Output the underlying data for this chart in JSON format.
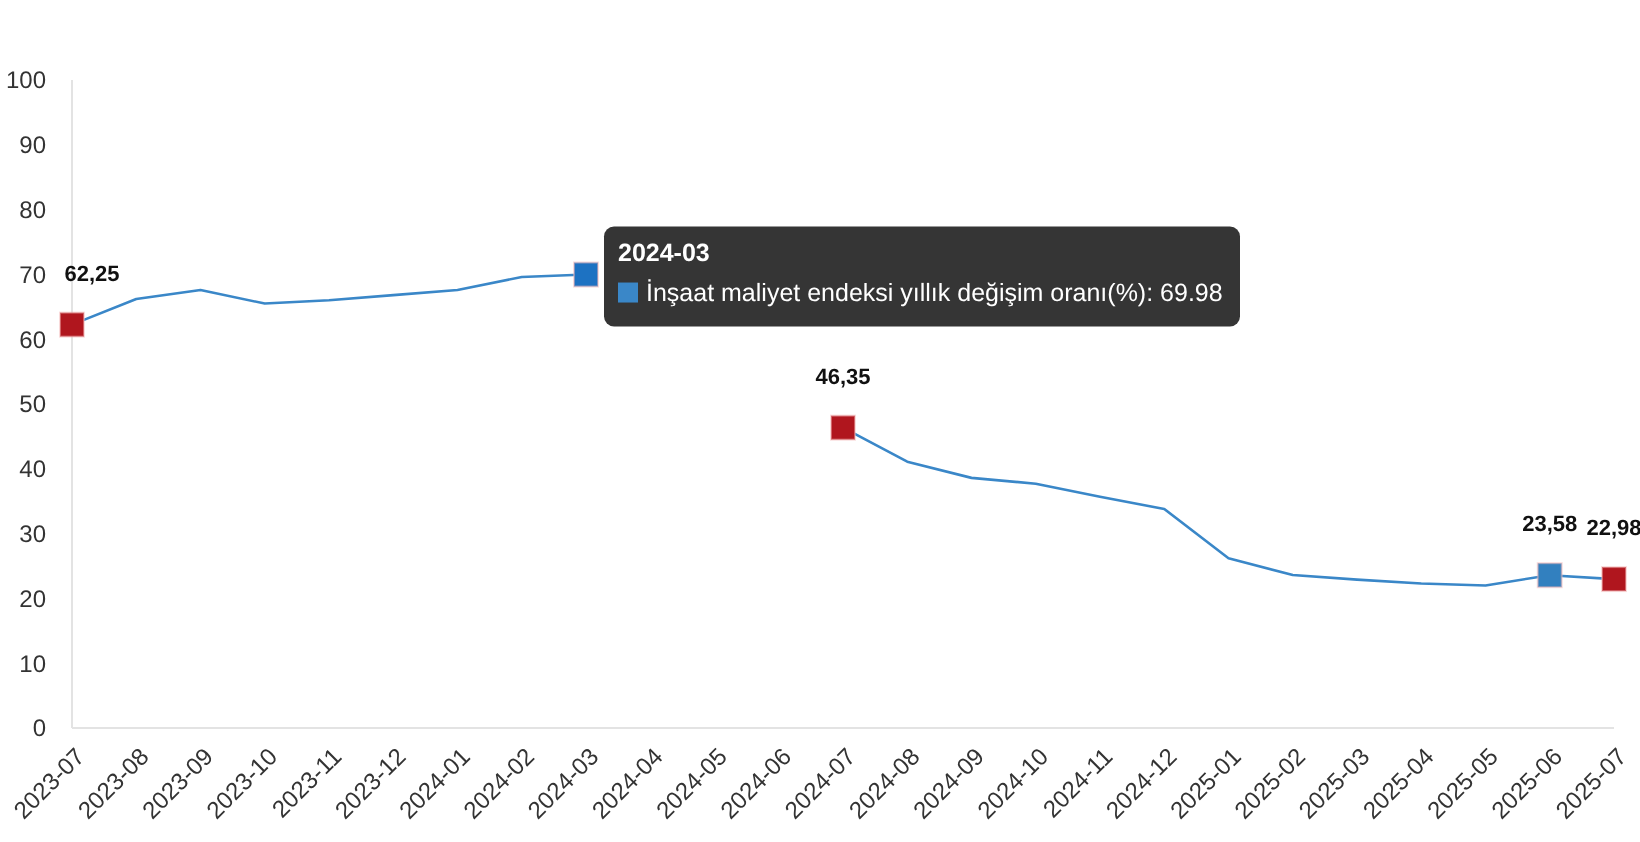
{
  "chart_data": {
    "type": "line",
    "categories": [
      "2023-07",
      "2023-08",
      "2023-09",
      "2023-10",
      "2023-11",
      "2023-12",
      "2024-01",
      "2024-02",
      "2024-03",
      "2024-04",
      "2024-05",
      "2024-06",
      "2024-07",
      "2024-08",
      "2024-09",
      "2024-10",
      "2024-11",
      "2024-12",
      "2025-01",
      "2025-02",
      "2025-03",
      "2025-04",
      "2025-05",
      "2025-06",
      "2025-07"
    ],
    "series": [
      {
        "name": "İnşaat maliyet endeksi yıllık değişim oranı(%)",
        "color": "#3a87c8",
        "marker": "none",
        "values": [
          62.25,
          66.2,
          67.6,
          65.5,
          66.0,
          66.8,
          67.6,
          69.6,
          69.98,
          null,
          null,
          null,
          46.35,
          41.1,
          38.6,
          37.7,
          35.7,
          33.8,
          26.2,
          23.6,
          22.9,
          22.3,
          22.0,
          23.58,
          22.98
        ]
      },
      {
        "type": "scatter",
        "marker": "square",
        "values": [
          62.25,
          null,
          null,
          null,
          null,
          null,
          null,
          null,
          69.98,
          null,
          null,
          null,
          46.35,
          null,
          null,
          null,
          null,
          null,
          null,
          null,
          null,
          null,
          null,
          23.58,
          22.98
        ],
        "colors": [
          "#b0161e",
          null,
          null,
          null,
          null,
          null,
          null,
          null,
          "#1d72c2",
          null,
          null,
          null,
          "#b0161e",
          null,
          null,
          null,
          null,
          null,
          null,
          null,
          null,
          null,
          null,
          "#3280bf",
          "#b0161e"
        ],
        "value_labels": [
          "62,25",
          null,
          null,
          null,
          null,
          null,
          null,
          null,
          null,
          null,
          null,
          null,
          "46,35",
          null,
          null,
          null,
          null,
          null,
          null,
          null,
          null,
          null,
          null,
          "23,58",
          "22,98"
        ]
      }
    ],
    "ylim": [
      0,
      100
    ],
    "yticks": [
      0,
      10,
      20,
      30,
      40,
      50,
      60,
      70,
      80,
      90,
      100
    ],
    "grid": false,
    "legend": false,
    "annotations": [
      {
        "text": "2024-03",
        "x": "2024-03",
        "y": 69.98
      },
      ": 69.98"
    ]
  }
}
